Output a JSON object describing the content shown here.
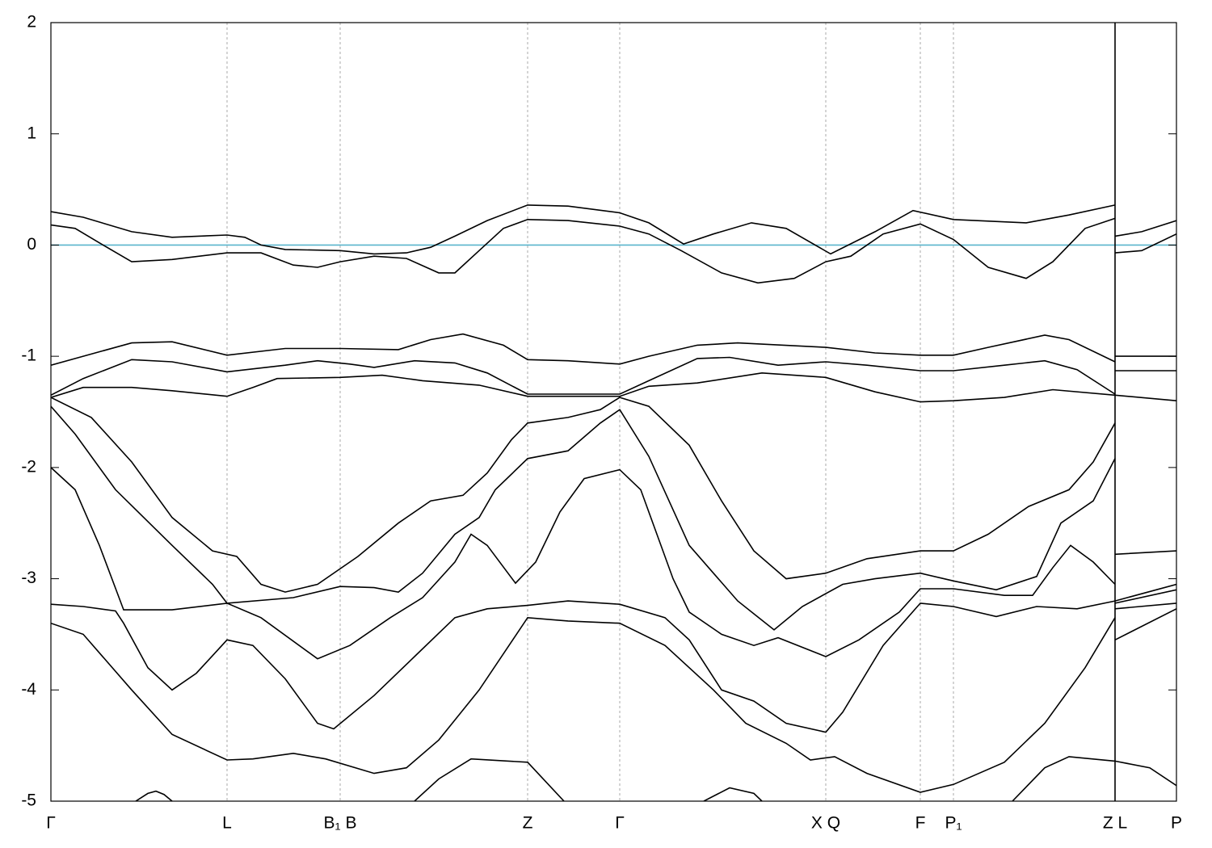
{
  "chart_data": {
    "type": "line",
    "xlim": [
      0,
      1393
    ],
    "ylim": [
      -5,
      2
    ],
    "yticks": [
      2,
      1,
      0,
      -1,
      -2,
      -3,
      -4,
      -5
    ],
    "xticks": [
      {
        "value": 0,
        "label": "Γ"
      },
      {
        "value": 218,
        "label": "L"
      },
      {
        "value": 358,
        "label": "B₁ B"
      },
      {
        "value": 590,
        "label": "Z"
      },
      {
        "value": 704,
        "label": "Γ"
      },
      {
        "value": 959,
        "label": "X Q"
      },
      {
        "value": 1076,
        "label": "F"
      },
      {
        "value": 1117,
        "label": "P₁"
      },
      {
        "value": 1317,
        "label": "Z L"
      },
      {
        "value": 1393,
        "label": "P"
      }
    ],
    "grid": true,
    "hline": {
      "value": 0,
      "color": "#5ab4cc"
    },
    "series": [
      {
        "color": "#000000",
        "x": [
          0,
          40,
          100,
          150,
          218,
          240,
          260,
          290,
          358,
          400,
          440,
          470,
          500,
          540,
          590,
          640,
          704,
          740,
          783,
          820,
          867,
          910,
          965,
          1020,
          1067,
          1117,
          1207,
          1260,
          1317,
          null,
          1317,
          1350,
          1393
        ],
        "values": [
          0.3,
          0.25,
          0.12,
          0.07,
          0.09,
          0.07,
          0.0,
          -0.04,
          -0.05,
          -0.08,
          -0.07,
          -0.02,
          0.08,
          0.22,
          0.36,
          0.35,
          0.29,
          0.2,
          0.01,
          0.1,
          0.2,
          0.15,
          -0.08,
          0.12,
          0.31,
          0.23,
          0.2,
          0.27,
          0.36,
          null,
          0.08,
          0.12,
          0.22
        ]
      },
      {
        "color": "#000000",
        "x": [
          0,
          30,
          60,
          100,
          150,
          218,
          260,
          300,
          330,
          358,
          400,
          440,
          480,
          500,
          530,
          560,
          590,
          640,
          704,
          740,
          780,
          830,
          875,
          920,
          959,
          990,
          1030,
          1076,
          1117,
          1160,
          1207,
          1240,
          1280,
          1317,
          null,
          1317,
          1350,
          1393
        ],
        "values": [
          0.18,
          0.15,
          0.02,
          -0.15,
          -0.13,
          -0.07,
          -0.07,
          -0.18,
          -0.2,
          -0.15,
          -0.1,
          -0.12,
          -0.25,
          -0.25,
          -0.05,
          0.15,
          0.23,
          0.22,
          0.17,
          0.1,
          -0.05,
          -0.25,
          -0.34,
          -0.3,
          -0.15,
          -0.1,
          0.1,
          0.19,
          0.05,
          -0.2,
          -0.3,
          -0.15,
          0.15,
          0.24,
          null,
          -0.07,
          -0.05,
          0.1
        ]
      },
      {
        "color": "#000000",
        "x": [
          0,
          40,
          100,
          150,
          218,
          290,
          358,
          430,
          470,
          510,
          560,
          590,
          640,
          704,
          740,
          800,
          850,
          959,
          1020,
          1076,
          1117,
          1160,
          1230,
          1260,
          1317,
          null,
          1317,
          1393
        ],
        "values": [
          -1.08,
          -1.0,
          -0.88,
          -0.87,
          -0.99,
          -0.93,
          -0.93,
          -0.94,
          -0.85,
          -0.8,
          -0.9,
          -1.03,
          -1.04,
          -1.07,
          -1.0,
          -0.9,
          -0.88,
          -0.92,
          -0.97,
          -0.99,
          -0.99,
          -0.92,
          -0.81,
          -0.85,
          -1.05,
          null,
          -1.0,
          -1.0
        ]
      },
      {
        "color": "#000000",
        "x": [
          0,
          40,
          100,
          150,
          218,
          290,
          330,
          370,
          400,
          450,
          500,
          540,
          590,
          640,
          704,
          740,
          800,
          840,
          900,
          959,
          1010,
          1076,
          1117,
          1180,
          1230,
          1270,
          1317,
          null,
          1317,
          1393
        ],
        "values": [
          -1.35,
          -1.2,
          -1.03,
          -1.05,
          -1.14,
          -1.08,
          -1.04,
          -1.07,
          -1.1,
          -1.04,
          -1.06,
          -1.15,
          -1.34,
          -1.34,
          -1.34,
          -1.22,
          -1.02,
          -1.01,
          -1.08,
          -1.05,
          -1.08,
          -1.13,
          -1.13,
          -1.08,
          -1.04,
          -1.12,
          -1.34,
          null,
          -1.13,
          -1.13
        ]
      },
      {
        "color": "#000000",
        "x": [
          0,
          40,
          100,
          150,
          218,
          250,
          280,
          358,
          410,
          460,
          530,
          590,
          640,
          704,
          740,
          800,
          880,
          959,
          1020,
          1076,
          1117,
          1180,
          1240,
          1317,
          1393
        ],
        "values": [
          -1.37,
          -1.28,
          -1.28,
          -1.31,
          -1.36,
          -1.28,
          -1.2,
          -1.19,
          -1.17,
          -1.22,
          -1.26,
          -1.36,
          -1.36,
          -1.36,
          -1.27,
          -1.24,
          -1.15,
          -1.19,
          -1.32,
          -1.41,
          -1.4,
          -1.37,
          -1.3,
          -1.35,
          -1.4
        ]
      },
      {
        "color": "#000000",
        "x": [
          0,
          50,
          100,
          150,
          200,
          230,
          260,
          290,
          330,
          380,
          430,
          470,
          510,
          540,
          570,
          590,
          640,
          680,
          704,
          740,
          790,
          830,
          870,
          910,
          959,
          1010,
          1076,
          1117,
          1160,
          1210,
          1260,
          1290,
          1317,
          null,
          1317,
          1393
        ],
        "values": [
          -1.37,
          -1.55,
          -1.95,
          -2.45,
          -2.75,
          -2.8,
          -3.05,
          -3.12,
          -3.05,
          -2.8,
          -2.5,
          -2.3,
          -2.25,
          -2.05,
          -1.75,
          -1.6,
          -1.55,
          -1.48,
          -1.37,
          -1.45,
          -1.8,
          -2.3,
          -2.75,
          -3.0,
          -2.95,
          -2.82,
          -2.75,
          -2.75,
          -2.6,
          -2.35,
          -2.2,
          -1.95,
          -1.6,
          null,
          -2.78,
          -2.75
        ]
      },
      {
        "color": "#000000",
        "x": [
          0,
          30,
          80,
          150,
          200,
          218,
          300,
          358,
          400,
          430,
          460,
          500,
          530,
          550,
          590,
          640,
          680,
          704,
          740,
          790,
          850,
          895,
          930,
          980,
          1020,
          1076,
          1117,
          1170,
          1220,
          1250,
          1290,
          1317,
          null,
          1317,
          1393
        ],
        "values": [
          -1.45,
          -1.7,
          -2.2,
          -2.7,
          -3.05,
          -3.22,
          -3.17,
          -3.07,
          -3.08,
          -3.12,
          -2.95,
          -2.6,
          -2.45,
          -2.2,
          -1.92,
          -1.85,
          -1.6,
          -1.48,
          -1.9,
          -2.7,
          -3.2,
          -3.46,
          -3.25,
          -3.05,
          -3.0,
          -2.95,
          -3.02,
          -3.1,
          -2.98,
          -2.5,
          -2.3,
          -1.92,
          null,
          -3.2,
          -3.05
        ]
      },
      {
        "color": "#000000",
        "x": [
          0,
          30,
          60,
          90,
          150,
          218,
          260,
          330,
          370,
          420,
          460,
          500,
          520,
          540,
          575,
          600,
          630,
          660,
          704,
          730,
          770,
          790,
          830,
          870,
          900,
          959,
          1000,
          1050,
          1076,
          1117,
          1180,
          1215,
          1240,
          1262,
          1290,
          1317,
          null,
          1317,
          1393
        ],
        "values": [
          -2.0,
          -2.2,
          -2.7,
          -3.28,
          -3.28,
          -3.22,
          -3.35,
          -3.72,
          -3.6,
          -3.35,
          -3.17,
          -2.85,
          -2.6,
          -2.7,
          -3.04,
          -2.85,
          -2.4,
          -2.1,
          -2.02,
          -2.2,
          -3.0,
          -3.3,
          -3.5,
          -3.6,
          -3.53,
          -3.7,
          -3.55,
          -3.3,
          -3.09,
          -3.09,
          -3.15,
          -3.15,
          -2.9,
          -2.7,
          -2.85,
          -3.05,
          null,
          -3.22,
          -3.1
        ]
      },
      {
        "color": "#000000",
        "x": [
          0,
          40,
          80,
          90,
          120,
          150,
          180,
          218,
          250,
          290,
          330,
          350,
          400,
          450,
          500,
          540,
          590,
          640,
          704,
          760,
          790,
          830,
          870,
          910,
          959,
          980,
          1030,
          1076,
          1117,
          1170,
          1220,
          1270,
          1317,
          null,
          1317,
          1393
        ],
        "values": [
          -3.23,
          -3.25,
          -3.29,
          -3.4,
          -3.8,
          -4.0,
          -3.85,
          -3.55,
          -3.6,
          -3.9,
          -4.3,
          -4.35,
          -4.05,
          -3.7,
          -3.35,
          -3.27,
          -3.24,
          -3.2,
          -3.23,
          -3.35,
          -3.55,
          -4.0,
          -4.1,
          -4.3,
          -4.38,
          -4.2,
          -3.6,
          -3.22,
          -3.25,
          -3.34,
          -3.25,
          -3.27,
          -3.2,
          null,
          -3.27,
          -3.22
        ]
      },
      {
        "color": "#000000",
        "x": [
          0,
          40,
          100,
          150,
          218,
          250,
          300,
          340,
          400,
          440,
          480,
          530,
          590,
          640,
          704,
          760,
          820,
          860,
          910,
          940,
          970,
          1010,
          1076,
          1117,
          1180,
          1230,
          1280,
          1317,
          null,
          1317,
          1393
        ],
        "values": [
          -3.4,
          -3.5,
          -4.0,
          -4.4,
          -4.63,
          -4.62,
          -4.57,
          -4.62,
          -4.75,
          -4.7,
          -4.45,
          -4.0,
          -3.35,
          -3.38,
          -3.4,
          -3.6,
          -4.0,
          -4.3,
          -4.48,
          -4.63,
          -4.6,
          -4.75,
          -4.92,
          -4.85,
          -4.65,
          -4.3,
          -3.8,
          -3.35,
          null,
          -3.55,
          -3.27
        ]
      },
      {
        "color": "#000000",
        "x": [
          105,
          120,
          130,
          140,
          150
        ],
        "values": [
          -5.0,
          -4.93,
          -4.91,
          -4.94,
          -5.0
        ]
      },
      {
        "color": "#000000",
        "x": [
          450,
          480,
          520,
          590,
          635
        ],
        "values": [
          -5.0,
          -4.8,
          -4.62,
          -4.65,
          -5.0
        ]
      },
      {
        "color": "#000000",
        "x": [
          808,
          840,
          870,
          880
        ],
        "values": [
          -5.0,
          -4.88,
          -4.93,
          -5.0
        ]
      },
      {
        "color": "#000000",
        "x": [
          1190,
          1230,
          1260,
          1317,
          1360,
          1393
        ],
        "values": [
          -5.0,
          -4.7,
          -4.6,
          -4.64,
          -4.7,
          -4.86
        ]
      }
    ]
  }
}
